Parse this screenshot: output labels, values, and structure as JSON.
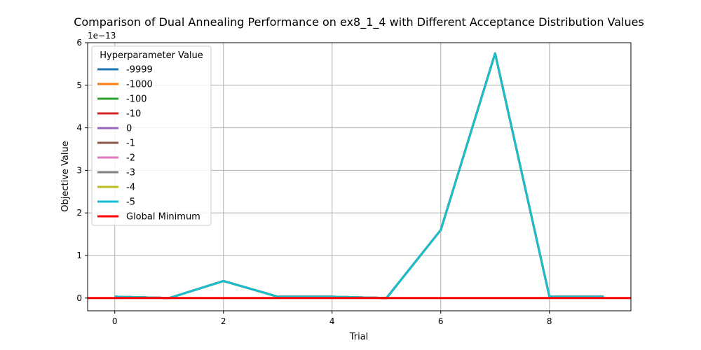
{
  "chart_data": {
    "type": "line",
    "title": "Comparison of Dual Annealing Performance on ex8_1_4 with Different Acceptance Distribution Values",
    "xlabel": "Trial",
    "ylabel": "Objective Value",
    "y_multiplier_label": "1e−13",
    "xlim": [
      -0.5,
      9.5
    ],
    "ylim": [
      -0.3,
      6.0
    ],
    "x_ticks": [
      0,
      2,
      4,
      6,
      8
    ],
    "y_ticks": [
      0,
      1,
      2,
      3,
      4,
      5,
      6
    ],
    "grid": true,
    "legend": {
      "title": "Hyperparameter Value",
      "placement": "top-left"
    },
    "x": [
      0,
      1,
      2,
      3,
      4,
      5,
      6,
      7,
      8,
      9
    ],
    "series": [
      {
        "name": "-9999",
        "color": "#1f77b4",
        "values": [
          0.03,
          0.0,
          0.4,
          0.03,
          0.03,
          0.0,
          1.6,
          5.75,
          0.03,
          0.03
        ]
      },
      {
        "name": "-1000",
        "color": "#ff7f0e",
        "values": [
          0.03,
          0.0,
          0.4,
          0.03,
          0.03,
          0.0,
          1.6,
          5.75,
          0.03,
          0.03
        ]
      },
      {
        "name": "-100",
        "color": "#2ca02c",
        "values": [
          0.03,
          0.0,
          0.4,
          0.03,
          0.03,
          0.0,
          1.6,
          5.75,
          0.03,
          0.03
        ]
      },
      {
        "name": "-10",
        "color": "#d62728",
        "values": [
          0.03,
          0.0,
          0.4,
          0.03,
          0.03,
          0.0,
          1.6,
          5.75,
          0.03,
          0.03
        ]
      },
      {
        "name": "0",
        "color": "#9467bd",
        "values": [
          0.03,
          0.0,
          0.4,
          0.03,
          0.03,
          0.0,
          1.6,
          5.75,
          0.03,
          0.03
        ]
      },
      {
        "name": "-1",
        "color": "#8c564b",
        "values": [
          0.03,
          0.0,
          0.4,
          0.03,
          0.03,
          0.0,
          1.6,
          5.75,
          0.03,
          0.03
        ]
      },
      {
        "name": "-2",
        "color": "#e377c2",
        "values": [
          0.03,
          0.0,
          0.4,
          0.03,
          0.03,
          0.0,
          1.6,
          5.75,
          0.03,
          0.03
        ]
      },
      {
        "name": "-3",
        "color": "#7f7f7f",
        "values": [
          0.03,
          0.0,
          0.4,
          0.03,
          0.03,
          0.0,
          1.6,
          5.75,
          0.03,
          0.03
        ]
      },
      {
        "name": "-4",
        "color": "#bcbd22",
        "values": [
          0.03,
          0.0,
          0.4,
          0.03,
          0.03,
          0.0,
          1.6,
          5.75,
          0.03,
          0.03
        ]
      },
      {
        "name": "-5",
        "color": "#17becf",
        "values": [
          0.03,
          0.0,
          0.4,
          0.03,
          0.03,
          0.0,
          1.6,
          5.75,
          0.03,
          0.03
        ]
      }
    ],
    "reference_line": {
      "name": "Global Minimum",
      "color": "#ff0000",
      "value": 0
    }
  }
}
